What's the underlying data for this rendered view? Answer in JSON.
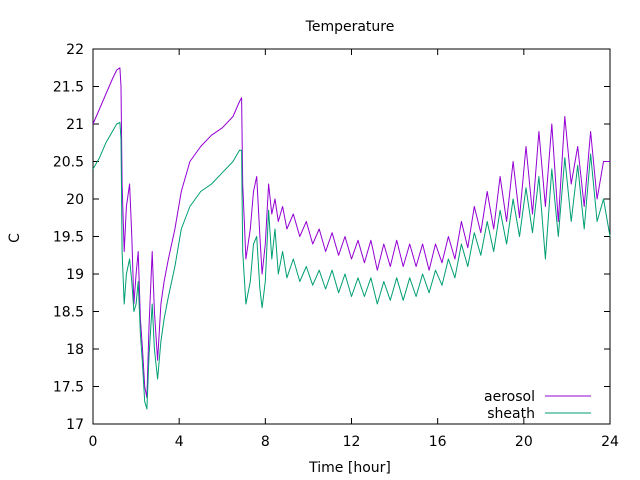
{
  "chart_data": {
    "type": "line",
    "title": "Temperature",
    "xlabel": "Time [hour]",
    "ylabel": "C",
    "xlim": [
      0,
      24
    ],
    "ylim": [
      17,
      22
    ],
    "xticks": [
      0,
      4,
      8,
      12,
      16,
      20,
      24
    ],
    "yticks": [
      17,
      17.5,
      18,
      18.5,
      19,
      19.5,
      20,
      20.5,
      21,
      21.5,
      22
    ],
    "ytick_labels": [
      "17",
      "17.5",
      "18",
      "18.5",
      "19",
      "19.5",
      "20",
      "20.5",
      "21",
      "21.5",
      "22"
    ],
    "grid": false,
    "legend_position": "bottom-right",
    "series": [
      {
        "name": "aerosol",
        "color": "#9400d3",
        "points": [
          [
            0,
            21.0
          ],
          [
            0.3,
            21.2
          ],
          [
            0.6,
            21.4
          ],
          [
            0.9,
            21.6
          ],
          [
            1.1,
            21.72
          ],
          [
            1.25,
            21.75
          ],
          [
            1.3,
            21.5
          ],
          [
            1.35,
            20.2
          ],
          [
            1.45,
            19.3
          ],
          [
            1.55,
            19.9
          ],
          [
            1.7,
            20.2
          ],
          [
            1.8,
            19.5
          ],
          [
            1.9,
            18.6
          ],
          [
            2.0,
            19.0
          ],
          [
            2.1,
            19.3
          ],
          [
            2.2,
            18.4
          ],
          [
            2.3,
            18.0
          ],
          [
            2.4,
            17.5
          ],
          [
            2.5,
            17.35
          ],
          [
            2.6,
            18.3
          ],
          [
            2.75,
            19.3
          ],
          [
            2.85,
            18.5
          ],
          [
            3.0,
            17.85
          ],
          [
            3.15,
            18.6
          ],
          [
            3.3,
            18.9
          ],
          [
            3.5,
            19.2
          ],
          [
            3.8,
            19.6
          ],
          [
            4.1,
            20.1
          ],
          [
            4.5,
            20.5
          ],
          [
            5.0,
            20.7
          ],
          [
            5.5,
            20.85
          ],
          [
            6.0,
            20.95
          ],
          [
            6.5,
            21.1
          ],
          [
            6.8,
            21.3
          ],
          [
            6.9,
            21.35
          ],
          [
            6.95,
            20.2
          ],
          [
            7.1,
            19.2
          ],
          [
            7.3,
            19.6
          ],
          [
            7.45,
            20.1
          ],
          [
            7.6,
            20.3
          ],
          [
            7.75,
            19.5
          ],
          [
            7.85,
            19.0
          ],
          [
            8.0,
            19.4
          ],
          [
            8.15,
            20.2
          ],
          [
            8.3,
            19.8
          ],
          [
            8.45,
            20.0
          ],
          [
            8.6,
            19.7
          ],
          [
            8.8,
            19.9
          ],
          [
            9.0,
            19.6
          ],
          [
            9.3,
            19.8
          ],
          [
            9.6,
            19.5
          ],
          [
            9.9,
            19.7
          ],
          [
            10.2,
            19.4
          ],
          [
            10.5,
            19.6
          ],
          [
            10.8,
            19.3
          ],
          [
            11.1,
            19.55
          ],
          [
            11.4,
            19.25
          ],
          [
            11.7,
            19.5
          ],
          [
            12.0,
            19.2
          ],
          [
            12.3,
            19.45
          ],
          [
            12.6,
            19.15
          ],
          [
            12.9,
            19.45
          ],
          [
            13.2,
            19.05
          ],
          [
            13.5,
            19.4
          ],
          [
            13.8,
            19.1
          ],
          [
            14.1,
            19.45
          ],
          [
            14.4,
            19.1
          ],
          [
            14.7,
            19.4
          ],
          [
            15.0,
            19.1
          ],
          [
            15.3,
            19.4
          ],
          [
            15.6,
            19.05
          ],
          [
            15.9,
            19.4
          ],
          [
            16.2,
            19.15
          ],
          [
            16.5,
            19.5
          ],
          [
            16.8,
            19.2
          ],
          [
            17.1,
            19.7
          ],
          [
            17.4,
            19.35
          ],
          [
            17.7,
            19.9
          ],
          [
            18.0,
            19.55
          ],
          [
            18.3,
            20.1
          ],
          [
            18.6,
            19.6
          ],
          [
            18.9,
            20.3
          ],
          [
            19.2,
            19.7
          ],
          [
            19.5,
            20.5
          ],
          [
            19.8,
            19.75
          ],
          [
            20.1,
            20.7
          ],
          [
            20.4,
            19.8
          ],
          [
            20.7,
            20.9
          ],
          [
            21.0,
            19.9
          ],
          [
            21.3,
            21.0
          ],
          [
            21.6,
            19.7
          ],
          [
            21.9,
            21.1
          ],
          [
            22.2,
            20.2
          ],
          [
            22.5,
            20.7
          ],
          [
            22.8,
            19.9
          ],
          [
            23.1,
            20.9
          ],
          [
            23.4,
            20.0
          ],
          [
            23.7,
            20.5
          ],
          [
            24.0,
            20.5
          ]
        ]
      },
      {
        "name": "sheath",
        "color": "#009e73",
        "points": [
          [
            0,
            20.4
          ],
          [
            0.3,
            20.55
          ],
          [
            0.6,
            20.75
          ],
          [
            0.9,
            20.9
          ],
          [
            1.1,
            21.0
          ],
          [
            1.25,
            21.02
          ],
          [
            1.3,
            20.8
          ],
          [
            1.35,
            19.3
          ],
          [
            1.45,
            18.6
          ],
          [
            1.55,
            19.0
          ],
          [
            1.7,
            19.2
          ],
          [
            1.8,
            18.9
          ],
          [
            1.9,
            18.5
          ],
          [
            2.0,
            18.6
          ],
          [
            2.1,
            18.9
          ],
          [
            2.2,
            18.2
          ],
          [
            2.3,
            17.8
          ],
          [
            2.4,
            17.3
          ],
          [
            2.5,
            17.2
          ],
          [
            2.6,
            17.9
          ],
          [
            2.75,
            18.6
          ],
          [
            2.85,
            18.0
          ],
          [
            3.0,
            17.6
          ],
          [
            3.15,
            18.1
          ],
          [
            3.3,
            18.4
          ],
          [
            3.5,
            18.7
          ],
          [
            3.8,
            19.1
          ],
          [
            4.1,
            19.6
          ],
          [
            4.5,
            19.9
          ],
          [
            5.0,
            20.1
          ],
          [
            5.5,
            20.2
          ],
          [
            6.0,
            20.35
          ],
          [
            6.5,
            20.5
          ],
          [
            6.8,
            20.65
          ],
          [
            6.9,
            20.65
          ],
          [
            6.95,
            19.3
          ],
          [
            7.1,
            18.6
          ],
          [
            7.3,
            18.9
          ],
          [
            7.45,
            19.4
          ],
          [
            7.6,
            19.5
          ],
          [
            7.75,
            18.8
          ],
          [
            7.85,
            18.55
          ],
          [
            8.0,
            18.9
          ],
          [
            8.15,
            19.85
          ],
          [
            8.3,
            19.2
          ],
          [
            8.45,
            19.6
          ],
          [
            8.6,
            19.0
          ],
          [
            8.8,
            19.3
          ],
          [
            9.0,
            18.95
          ],
          [
            9.3,
            19.2
          ],
          [
            9.6,
            18.9
          ],
          [
            9.9,
            19.1
          ],
          [
            10.2,
            18.85
          ],
          [
            10.5,
            19.05
          ],
          [
            10.8,
            18.8
          ],
          [
            11.1,
            19.05
          ],
          [
            11.4,
            18.75
          ],
          [
            11.7,
            19.0
          ],
          [
            12.0,
            18.7
          ],
          [
            12.3,
            18.95
          ],
          [
            12.6,
            18.7
          ],
          [
            12.9,
            18.95
          ],
          [
            13.2,
            18.6
          ],
          [
            13.5,
            18.9
          ],
          [
            13.8,
            18.65
          ],
          [
            14.1,
            18.95
          ],
          [
            14.4,
            18.65
          ],
          [
            14.7,
            18.95
          ],
          [
            15.0,
            18.7
          ],
          [
            15.3,
            19.0
          ],
          [
            15.6,
            18.75
          ],
          [
            15.9,
            19.05
          ],
          [
            16.2,
            18.85
          ],
          [
            16.5,
            19.2
          ],
          [
            16.8,
            18.95
          ],
          [
            17.1,
            19.4
          ],
          [
            17.4,
            19.1
          ],
          [
            17.7,
            19.55
          ],
          [
            18.0,
            19.25
          ],
          [
            18.3,
            19.7
          ],
          [
            18.6,
            19.3
          ],
          [
            18.9,
            19.85
          ],
          [
            19.2,
            19.4
          ],
          [
            19.5,
            20.0
          ],
          [
            19.8,
            19.5
          ],
          [
            20.1,
            20.15
          ],
          [
            20.4,
            19.55
          ],
          [
            20.7,
            20.3
          ],
          [
            21.0,
            19.2
          ],
          [
            21.3,
            20.4
          ],
          [
            21.6,
            19.5
          ],
          [
            21.9,
            20.55
          ],
          [
            22.2,
            19.7
          ],
          [
            22.5,
            20.45
          ],
          [
            22.8,
            19.6
          ],
          [
            23.1,
            20.6
          ],
          [
            23.4,
            19.7
          ],
          [
            23.7,
            20.0
          ],
          [
            24.0,
            19.5
          ]
        ]
      }
    ]
  }
}
